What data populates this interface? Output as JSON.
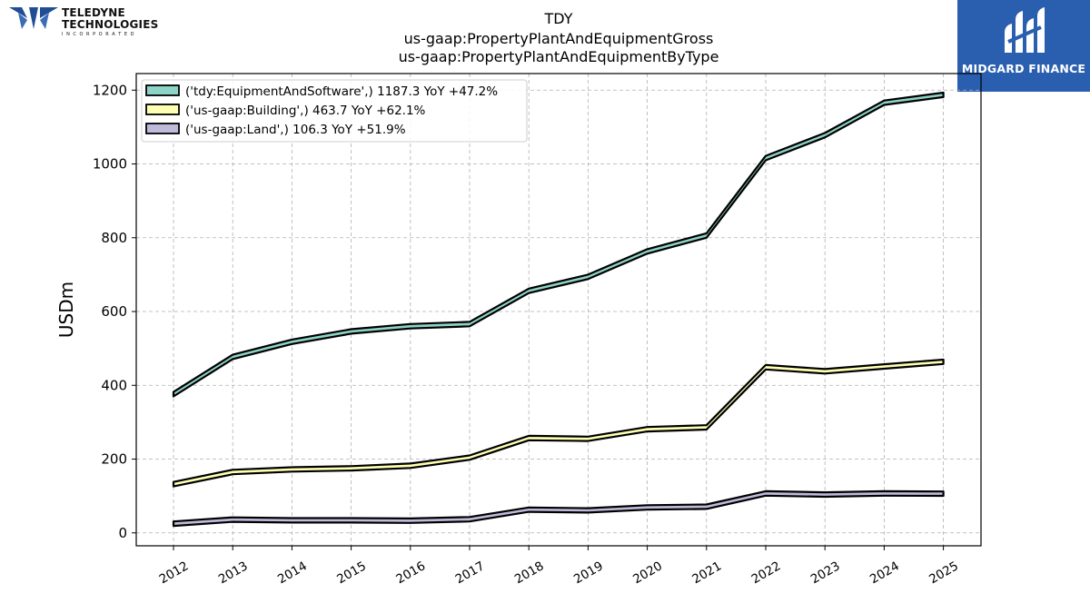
{
  "brand": {
    "company_line1": "TELEDYNE",
    "company_line2": "TECHNOLOGIES",
    "company_line3": "I N C O R P O R A T E D",
    "watermark_label": "MIDGARD FINANCE"
  },
  "colors": {
    "equipment": "#8dd3c7",
    "building": "#ffffb3",
    "land": "#bebada",
    "outline": "#000000",
    "grid": "#b0b0b0",
    "brand_blue": "#2a5fb0"
  },
  "chart_data": {
    "type": "area",
    "title": [
      "TDY",
      "us-gaap:PropertyPlantAndEquipmentGross",
      "us-gaap:PropertyPlantAndEquipmentByType"
    ],
    "xlabel": "",
    "ylabel": "USDm",
    "x": [
      "2012",
      "2013",
      "2014",
      "2015",
      "2016",
      "2017",
      "2018",
      "2019",
      "2020",
      "2021",
      "2022",
      "2023",
      "2024",
      "2025"
    ],
    "ylim": [
      -35,
      1245
    ],
    "yticks": [
      0,
      200,
      400,
      600,
      800,
      1000,
      1200
    ],
    "grid": true,
    "legend_position": "top-left",
    "series": [
      {
        "name": "('tdy:EquipmentAndSoftware',) 1187.3 YoY +47.2%",
        "values": [
          376,
          477,
          518,
          546,
          560,
          566,
          656,
          694,
          763,
          806,
          1016,
          1078,
          1166,
          1187.3
        ]
      },
      {
        "name": "('us-gaap:Building',) 463.7 YoY +62.1%",
        "values": [
          132,
          165,
          172,
          175,
          182,
          204,
          257,
          255,
          281,
          286,
          449,
          438,
          451,
          463.7
        ]
      },
      {
        "name": "('us-gaap:Land',) 106.3 YoY +51.9%",
        "values": [
          25,
          36,
          34,
          34,
          33,
          37,
          63,
          61,
          69,
          71,
          107,
          104,
          107,
          106.3
        ]
      }
    ]
  }
}
